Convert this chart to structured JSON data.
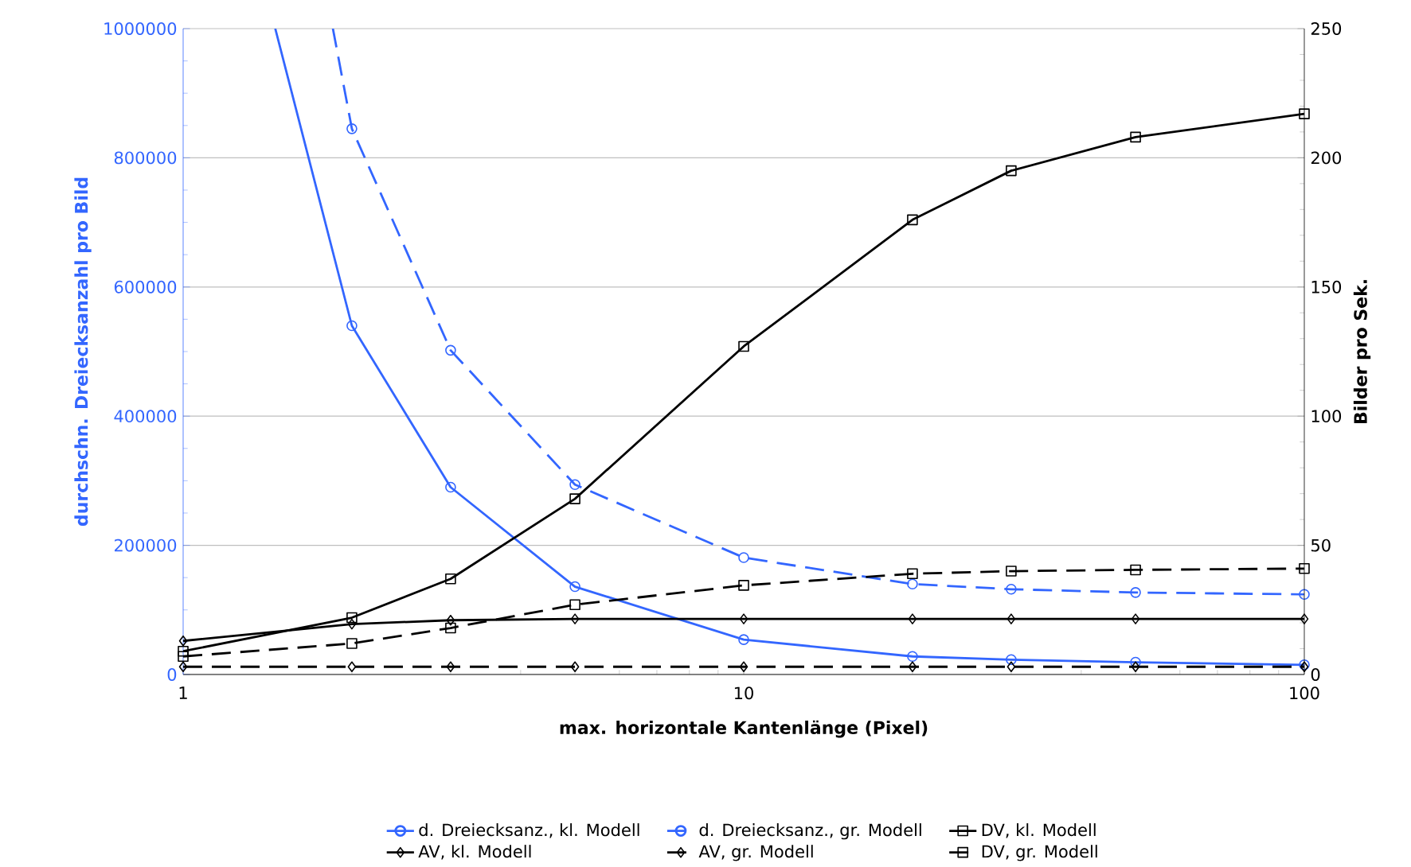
{
  "chart_data": {
    "type": "line",
    "x": [
      1,
      2,
      3,
      5,
      10,
      20,
      30,
      50,
      100
    ],
    "xlabel": "max. horizontale Kantenlänge (Pixel)",
    "ylabel": "durchschn. Dreiecksanzahl pro Bild",
    "y2label": "Bilder pro Sek.",
    "log": "x",
    "xlim": [
      1,
      100
    ],
    "xticks": [
      1,
      10,
      100
    ],
    "ylim": [
      0,
      1000000
    ],
    "yticks": [
      0,
      200000,
      400000,
      600000,
      800000,
      1000000
    ],
    "y2lim": [
      0,
      250
    ],
    "y2ticks": [
      0,
      50,
      100,
      150,
      200,
      250
    ],
    "grid": "y",
    "legend": "bottom",
    "series": [
      {
        "name": "d. Dreiecksanz., kl. Modell",
        "color": "#3366ff",
        "marker": "circle",
        "line_style": "solid",
        "x": [
          1.46,
          2,
          3,
          5,
          10,
          20,
          30,
          50,
          100
        ],
        "values": [
          1000000,
          540000,
          290000,
          136000,
          54000,
          28000,
          23000,
          19000,
          15000
        ]
      },
      {
        "name": "d. Dreiecksanz., gr. Modell",
        "color": "#3366ff",
        "marker": "circle",
        "line_style": "dashed",
        "x": [
          1.85,
          2,
          3,
          5,
          10,
          20,
          30,
          50,
          100
        ],
        "values": [
          1000000,
          845000,
          502000,
          294000,
          181000,
          140000,
          132000,
          127000,
          124000
        ]
      },
      {
        "name": "DV, kl. Modell",
        "color": "#000000",
        "marker": "square",
        "line_style": "solid",
        "axis": "y2",
        "values": [
          9,
          22,
          37,
          68,
          127,
          176,
          195,
          208,
          217
        ]
      },
      {
        "name": "AV, kl. Modell",
        "color": "#000000",
        "marker": "diamond",
        "line_style": "solid",
        "axis": "y2",
        "values": [
          13,
          19.5,
          21,
          21.5,
          21.5,
          21.5,
          21.5,
          21.5,
          21.5
        ]
      },
      {
        "name": "AV, gr. Modell",
        "color": "#000000",
        "marker": "diamond",
        "line_style": "dashed",
        "axis": "y2",
        "values": [
          3,
          3,
          3,
          3,
          3,
          3,
          3,
          3,
          3
        ]
      },
      {
        "name": "DV, gr. Modell",
        "color": "#000000",
        "marker": "square",
        "line_style": "dashed",
        "axis": "y2",
        "values": [
          7,
          12,
          18,
          27,
          34.5,
          39,
          40,
          40.5,
          41
        ]
      }
    ]
  }
}
